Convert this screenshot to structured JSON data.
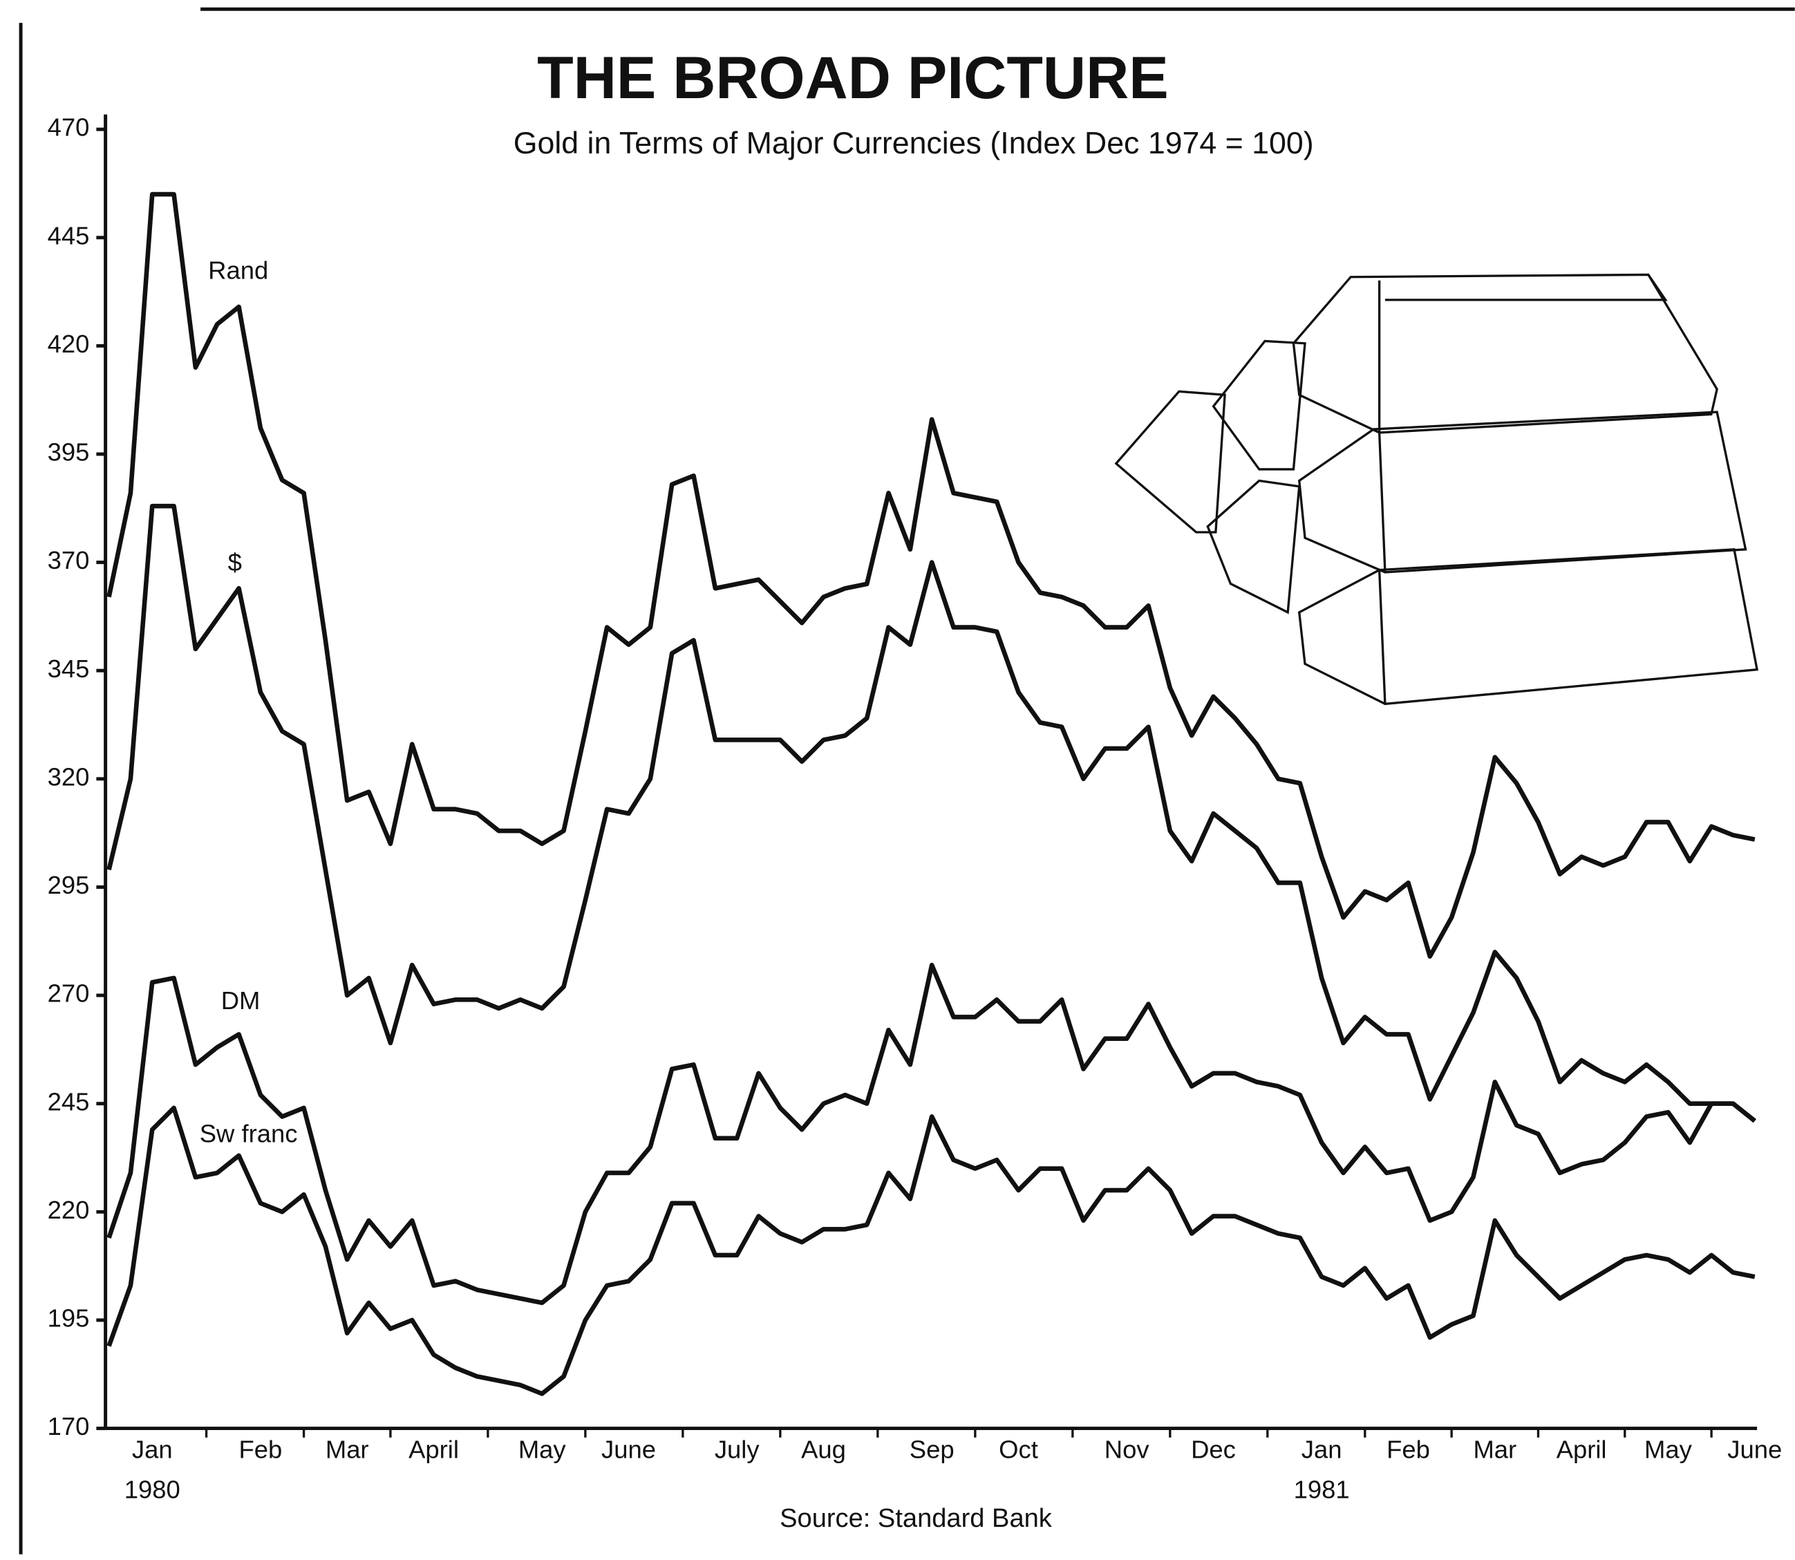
{
  "chart_data": {
    "type": "line",
    "title": "THE BROAD PICTURE",
    "subtitle": "Gold in Terms of Major Currencies (Index Dec 1974 = 100)",
    "source": "Source: Standard Bank",
    "categories": [
      null,
      null,
      "Jan",
      null,
      null,
      null,
      null,
      "Feb",
      null,
      null,
      null,
      "Mar",
      null,
      null,
      null,
      "April",
      null,
      null,
      null,
      null,
      "May",
      null,
      null,
      null,
      "June",
      null,
      null,
      null,
      null,
      "July",
      null,
      null,
      null,
      "Aug",
      null,
      null,
      null,
      null,
      "Sep",
      null,
      null,
      null,
      "Oct",
      null,
      null,
      null,
      null,
      "Nov",
      null,
      null,
      null,
      "Dec",
      null,
      null,
      null,
      null,
      "Jan",
      null,
      null,
      null,
      "Feb",
      null,
      null,
      null,
      "Mar",
      null,
      null,
      null,
      "April",
      null,
      null,
      null,
      "May",
      null,
      null,
      null,
      "June"
    ],
    "x_sublabels": [
      null,
      null,
      "1980",
      null,
      null,
      null,
      null,
      null,
      null,
      null,
      null,
      null,
      null,
      null,
      null,
      null,
      null,
      null,
      null,
      null,
      null,
      null,
      null,
      null,
      null,
      null,
      null,
      null,
      null,
      null,
      null,
      null,
      null,
      null,
      null,
      null,
      null,
      null,
      null,
      null,
      null,
      null,
      null,
      null,
      null,
      null,
      null,
      null,
      null,
      null,
      null,
      null,
      null,
      null,
      null,
      null,
      "1981",
      null,
      null,
      null,
      null,
      null,
      null,
      null,
      null,
      null,
      null,
      null,
      null,
      null,
      null,
      null,
      null,
      null,
      null,
      null,
      null
    ],
    "series": [
      {
        "name": "Rand",
        "color": "#111111",
        "values": [
          362,
          386,
          455,
          455,
          415,
          425,
          429,
          401,
          389,
          386,
          352,
          315,
          317,
          305,
          328,
          313,
          313,
          312,
          308,
          308,
          305,
          308,
          331,
          355,
          351,
          355,
          388,
          390,
          364,
          365,
          366,
          361,
          356,
          362,
          364,
          365,
          386,
          373,
          403,
          386,
          385,
          384,
          370,
          363,
          362,
          360,
          355,
          355,
          360,
          341,
          330,
          339,
          334,
          328,
          320,
          319,
          302,
          288,
          294,
          292,
          296,
          279,
          288,
          303,
          325,
          319,
          310,
          298,
          302,
          300,
          302,
          310,
          310,
          301,
          309,
          307,
          306
        ]
      },
      {
        "name": "$",
        "color": "#111111",
        "values": [
          299,
          320,
          383,
          383,
          350,
          357,
          364,
          340,
          331,
          328,
          299,
          270,
          274,
          259,
          277,
          268,
          269,
          269,
          267,
          269,
          267,
          272,
          292,
          313,
          312,
          320,
          349,
          352,
          329,
          329,
          329,
          329,
          324,
          329,
          330,
          334,
          355,
          351,
          370,
          355,
          355,
          354,
          340,
          333,
          332,
          320,
          327,
          327,
          332,
          308,
          301,
          312,
          308,
          304,
          296,
          296,
          274,
          259,
          265,
          261,
          261,
          246,
          256,
          266,
          280,
          274,
          264,
          250,
          255,
          252,
          250,
          254,
          250,
          245,
          245,
          245,
          241
        ]
      },
      {
        "name": "DM",
        "color": "#111111",
        "values": [
          214,
          229,
          273,
          274,
          254,
          258,
          261,
          247,
          242,
          244,
          225,
          209,
          218,
          212,
          218,
          203,
          204,
          202,
          201,
          200,
          199,
          203,
          220,
          229,
          229,
          235,
          253,
          254,
          237,
          237,
          252,
          244,
          239,
          245,
          247,
          245,
          262,
          254,
          277,
          265,
          265,
          269,
          264,
          264,
          269,
          253,
          260,
          260,
          268,
          258,
          249,
          252,
          252,
          250,
          249,
          247,
          236,
          229,
          235,
          229,
          230,
          218,
          220,
          228,
          250,
          240,
          238,
          229,
          231,
          232,
          236,
          242,
          243,
          236,
          245,
          245,
          241
        ]
      },
      {
        "name": "Sw franc",
        "color": "#111111",
        "values": [
          189,
          203,
          239,
          244,
          228,
          229,
          233,
          222,
          220,
          224,
          212,
          192,
          199,
          193,
          195,
          187,
          184,
          182,
          181,
          180,
          178,
          182,
          195,
          203,
          204,
          209,
          222,
          222,
          210,
          210,
          219,
          215,
          213,
          216,
          216,
          217,
          229,
          223,
          242,
          232,
          230,
          232,
          225,
          230,
          230,
          218,
          225,
          225,
          230,
          225,
          215,
          219,
          219,
          217,
          215,
          214,
          205,
          203,
          207,
          200,
          203,
          191,
          194,
          196,
          218,
          210,
          205,
          200,
          203,
          206,
          209,
          210,
          209,
          206,
          210,
          206,
          205
        ]
      }
    ],
    "ylim": [
      170,
      470
    ],
    "yticks": [
      170,
      195,
      220,
      245,
      270,
      295,
      320,
      345,
      370,
      395,
      420,
      445,
      470
    ]
  }
}
